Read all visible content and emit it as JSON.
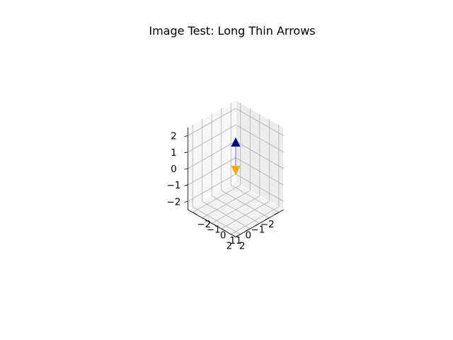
{
  "chart_data": {
    "type": "3d-quiver",
    "title": "Image Test: Long Thin Arrows",
    "xlabel": "",
    "ylabel": "",
    "zlabel": "",
    "xlim": [
      -2.5,
      2.5
    ],
    "ylim": [
      -2.5,
      2.5
    ],
    "zlim": [
      -2.5,
      2.5
    ],
    "x_ticks": [
      -2,
      -1,
      0,
      1,
      2
    ],
    "y_ticks": [
      -2,
      -1,
      0,
      1,
      2
    ],
    "z_ticks": [
      -2,
      -1,
      0,
      1,
      2
    ],
    "x_tick_labels": [
      "−2",
      "−1",
      "0",
      "1",
      "2"
    ],
    "y_tick_labels": [
      "−2",
      "−1",
      "0",
      "1",
      "2"
    ],
    "z_tick_labels": [
      "−2",
      "−1",
      "0",
      "1",
      "2"
    ],
    "grid": true,
    "view": {
      "elev_deg": 35,
      "azim_deg": 45
    },
    "arrows": [
      {
        "start": [
          0,
          0,
          0
        ],
        "vector": [
          0,
          0,
          1.9
        ],
        "color": "#000080",
        "style": "long-thin"
      },
      {
        "start": [
          0,
          0,
          0
        ],
        "vector": [
          0,
          0,
          -0.4
        ],
        "color": "#ffa500",
        "style": "long-thin"
      }
    ]
  }
}
